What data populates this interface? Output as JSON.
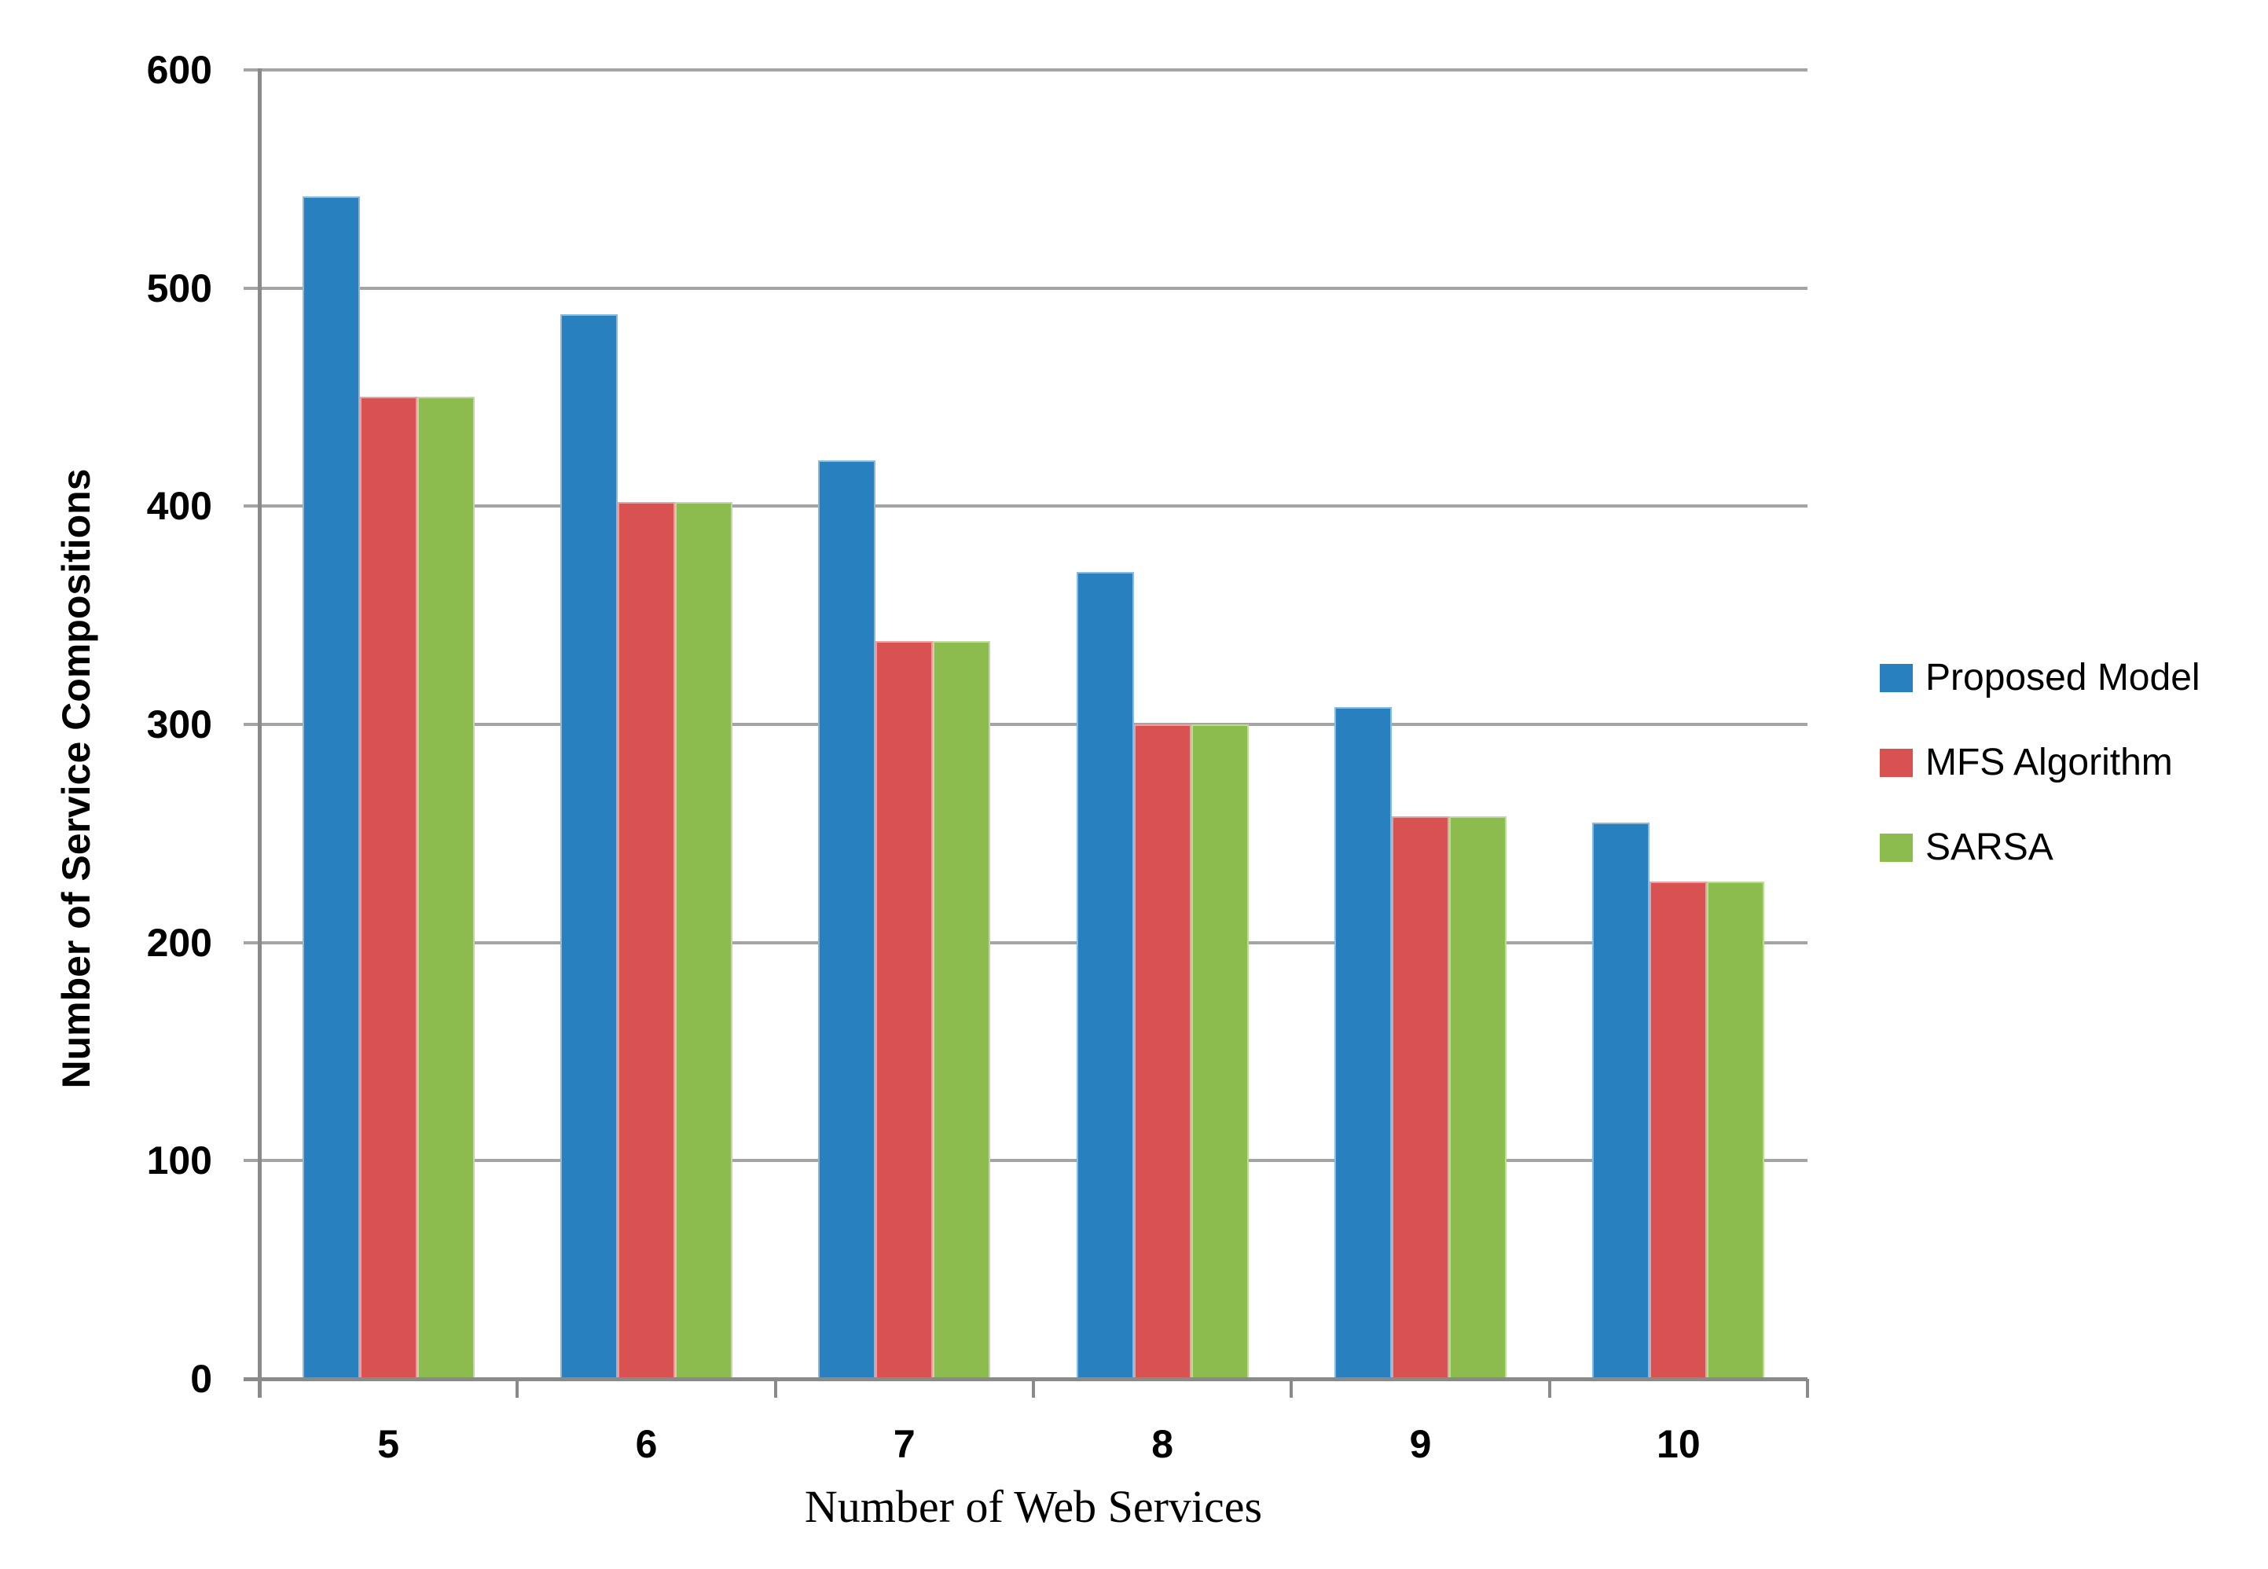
{
  "chart_data": {
    "type": "bar",
    "title": "",
    "categories": [
      "5",
      "6",
      "7",
      "8",
      "9",
      "10"
    ],
    "series": [
      {
        "name": "Proposed Model",
        "color": "#2880BE",
        "values": [
          542,
          488,
          421,
          370,
          308,
          255
        ]
      },
      {
        "name": "MFS Algorithm",
        "color": "#D95252",
        "values": [
          450,
          402,
          338,
          300,
          258,
          228
        ]
      },
      {
        "name": "SARSA",
        "color": "#8CBB4E",
        "values": [
          450,
          402,
          338,
          300,
          258,
          228
        ]
      }
    ],
    "xlabel": "Number of Web Services",
    "ylabel": "Number of Service Compositions",
    "ylim": [
      0,
      600
    ],
    "ytick_step": 100,
    "yticks": [
      "0",
      "100",
      "200",
      "300",
      "400",
      "500",
      "600"
    ],
    "grid": "horizontal",
    "legend_position": "right"
  },
  "colors": {
    "background": "#FFFFFF",
    "axis": "#8A8A8A",
    "gridline": "#A4A4A4",
    "text": "#000000"
  }
}
